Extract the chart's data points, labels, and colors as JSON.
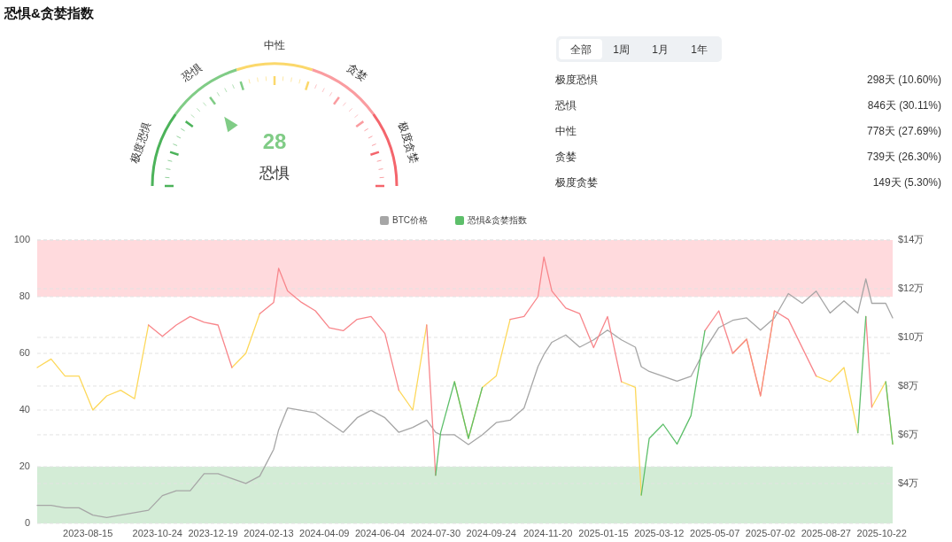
{
  "chart_data": [
    {
      "type": "other",
      "title": "恐惧&贪婪指数",
      "categories": [
        "极度恐惧",
        "恐惧",
        "中性",
        "贪婪",
        "极度贪婪"
      ],
      "colors": [
        "#4cb35a",
        "#80cc86",
        "#fbd86b",
        "#fa9ca0",
        "#f4656c"
      ],
      "annotations": [
        "28",
        "恐惧"
      ]
    },
    {
      "type": "other",
      "categories": [
        "全部",
        "1周",
        "1月",
        "1年"
      ],
      "annotations": [
        "极度恐惧",
        "298天 (10.60%)",
        "恐惧",
        "846天 (30.11%)",
        "中性",
        "778天 (27.69%)",
        "贪婪",
        "739天 (26.30%)",
        "极度贪婪",
        "149天 (5.30%)"
      ]
    },
    {
      "type": "line",
      "x": [
        "2023-06-25",
        "2023-07-09",
        "2023-07-23",
        "2023-08-06",
        "2023-08-20",
        "2023-09-03",
        "2023-09-17",
        "2023-10-01",
        "2023-10-15",
        "2023-10-29",
        "2023-11-12",
        "2023-11-26",
        "2023-12-10",
        "2023-12-24",
        "2024-01-07",
        "2024-01-21",
        "2024-02-04",
        "2024-02-18",
        "2024-02-23",
        "2024-03-03",
        "2024-03-17",
        "2024-03-31",
        "2024-04-14",
        "2024-04-28",
        "2024-05-12",
        "2024-05-26",
        "2024-06-09",
        "2024-06-23",
        "2024-07-07",
        "2024-07-21",
        "2024-07-30",
        "2024-08-04",
        "2024-08-18",
        "2024-09-01",
        "2024-09-15",
        "2024-09-29",
        "2024-10-13",
        "2024-10-27",
        "2024-11-10",
        "2024-11-16",
        "2024-11-24",
        "2024-12-08",
        "2024-12-22",
        "2025-01-05",
        "2025-01-19",
        "2025-02-02",
        "2025-02-16",
        "2025-02-22",
        "2025-03-02",
        "2025-03-16",
        "2025-03-30",
        "2025-04-13",
        "2025-04-27",
        "2025-05-11",
        "2025-05-25",
        "2025-06-08",
        "2025-06-22",
        "2025-07-06",
        "2025-07-20",
        "2025-08-03",
        "2025-08-17",
        "2025-08-31",
        "2025-09-14",
        "2025-09-28",
        "2025-10-06",
        "2025-10-12",
        "2025-10-26",
        "2025-11-02"
      ],
      "xlim": [
        "2023-06-25",
        "2025-11-02"
      ],
      "xticks": [
        "2023-08-15",
        "2023-10-24",
        "2023-12-19",
        "2024-02-13",
        "2024-04-09",
        "2024-06-04",
        "2024-07-30",
        "2024-09-24",
        "2024-11-20",
        "2025-01-15",
        "2025-03-12",
        "2025-05-07",
        "2025-07-02",
        "2025-08-27",
        "2025-10-22"
      ],
      "ylim": [
        0,
        100
      ],
      "yticks": [
        0,
        20,
        40,
        60,
        80,
        100
      ],
      "y2lim": [
        2.36,
        14
      ],
      "y2ticks": [
        {
          "value": 4,
          "label": "$4万"
        },
        {
          "value": 6,
          "label": "$6万"
        },
        {
          "value": 8,
          "label": "$8万"
        },
        {
          "value": 10,
          "label": "$10万"
        },
        {
          "value": 12,
          "label": "$12万"
        },
        {
          "value": 14,
          "label": "$14万"
        }
      ],
      "grid": true,
      "legend": "top",
      "bands": [
        {
          "axis": "y",
          "from": 80,
          "to": 100,
          "color": "#ffdadd"
        },
        {
          "axis": "y",
          "from": 0,
          "to": 20,
          "color": "#d3ecd6"
        }
      ],
      "series": [
        {
          "name": "BTC价格",
          "color": "#a6a6a6",
          "axis": "y2",
          "values": [
            3.1,
            3.1,
            3.0,
            3.0,
            2.7,
            2.6,
            2.7,
            2.8,
            2.9,
            3.5,
            3.7,
            3.7,
            4.4,
            4.4,
            4.2,
            4.0,
            4.3,
            5.4,
            6.2,
            7.1,
            7.0,
            6.9,
            6.5,
            6.1,
            6.7,
            7.0,
            6.7,
            6.1,
            6.3,
            6.6,
            6.1,
            6.0,
            6.0,
            5.6,
            6.0,
            6.5,
            6.6,
            7.1,
            8.8,
            9.3,
            9.8,
            10.1,
            9.6,
            9.9,
            10.3,
            9.9,
            9.6,
            8.8,
            8.6,
            8.4,
            8.2,
            8.4,
            9.5,
            10.4,
            10.7,
            10.8,
            10.3,
            10.8,
            11.8,
            11.4,
            11.9,
            11.0,
            11.5,
            11.0,
            12.4,
            11.4,
            11.4,
            10.8
          ]
        },
        {
          "color": "#fdd85a",
          "values": [
            55,
            58,
            52,
            52,
            40,
            45,
            47,
            44,
            70,
            null,
            null,
            null,
            null,
            null,
            55,
            60,
            74,
            null,
            null,
            null,
            null,
            null,
            null,
            null,
            null,
            null,
            null,
            47,
            40,
            70,
            null,
            null,
            50,
            30,
            48,
            52,
            72,
            null,
            null,
            null,
            null,
            null,
            null,
            null,
            null,
            50,
            48,
            10,
            null,
            null,
            null,
            null,
            null,
            null,
            60,
            65,
            45,
            75,
            null,
            null,
            52,
            50,
            55,
            32,
            null,
            41,
            50,
            28
          ]
        },
        {
          "color": "#f8868b",
          "values": [
            null,
            null,
            null,
            null,
            null,
            null,
            null,
            null,
            70,
            66,
            70,
            73,
            71,
            70,
            55,
            null,
            74,
            78,
            90,
            82,
            78,
            75,
            69,
            68,
            72,
            73,
            67,
            47,
            null,
            70,
            17,
            null,
            null,
            null,
            null,
            null,
            72,
            73,
            80,
            94,
            82,
            76,
            74,
            62,
            73,
            50,
            null,
            null,
            null,
            null,
            null,
            null,
            68,
            75,
            60,
            65,
            45,
            75,
            72,
            62,
            52,
            null,
            null,
            null,
            73,
            41,
            null,
            null
          ]
        },
        {
          "name": "恐惧&贪婪指数",
          "color": "#5dbf6a",
          "values": [
            null,
            null,
            null,
            null,
            null,
            null,
            null,
            null,
            null,
            null,
            null,
            null,
            null,
            null,
            null,
            null,
            null,
            null,
            null,
            null,
            null,
            null,
            null,
            null,
            null,
            null,
            null,
            null,
            null,
            null,
            17,
            32,
            50,
            30,
            48,
            null,
            null,
            null,
            null,
            null,
            null,
            null,
            null,
            null,
            null,
            null,
            null,
            10,
            30,
            35,
            28,
            38,
            68,
            null,
            null,
            null,
            null,
            null,
            null,
            null,
            null,
            null,
            null,
            32,
            73,
            null,
            50,
            28
          ]
        }
      ]
    }
  ]
}
